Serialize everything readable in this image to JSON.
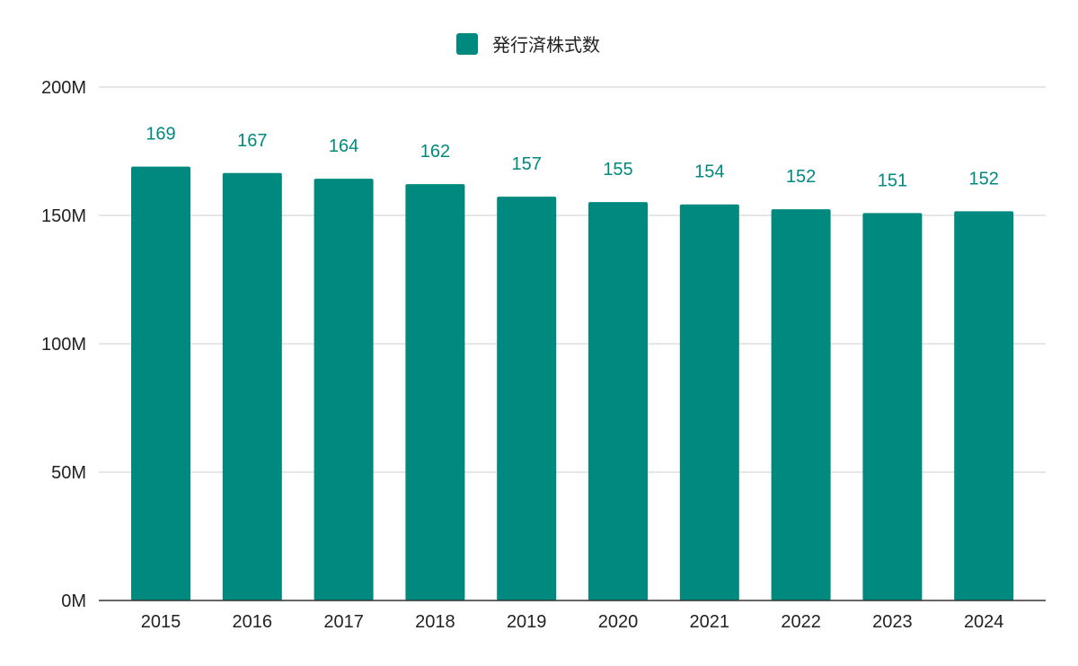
{
  "chart_data": {
    "type": "bar",
    "categories": [
      "2015",
      "2016",
      "2017",
      "2018",
      "2019",
      "2020",
      "2021",
      "2022",
      "2023",
      "2024"
    ],
    "series": [
      {
        "name": "発行済株式数",
        "values": [
          169000000,
          166500000,
          164300000,
          162200000,
          157300000,
          155200000,
          154300000,
          152400000,
          150900000,
          151600000
        ],
        "data_labels": [
          "169",
          "167",
          "164",
          "162",
          "157",
          "155",
          "154",
          "152",
          "151",
          "152"
        ]
      }
    ],
    "y_ticks": [
      {
        "value": 0,
        "label": "0M"
      },
      {
        "value": 50000000,
        "label": "50M"
      },
      {
        "value": 100000000,
        "label": "100M"
      },
      {
        "value": 150000000,
        "label": "150M"
      },
      {
        "value": 200000000,
        "label": "200M"
      }
    ],
    "ylim": [
      0,
      200000000
    ],
    "grid": true,
    "legend_position": "top-center",
    "colors": {
      "bar": "#00897f",
      "data_label": "#00897f",
      "grid": "#cccccc",
      "axis": "#333333"
    }
  }
}
